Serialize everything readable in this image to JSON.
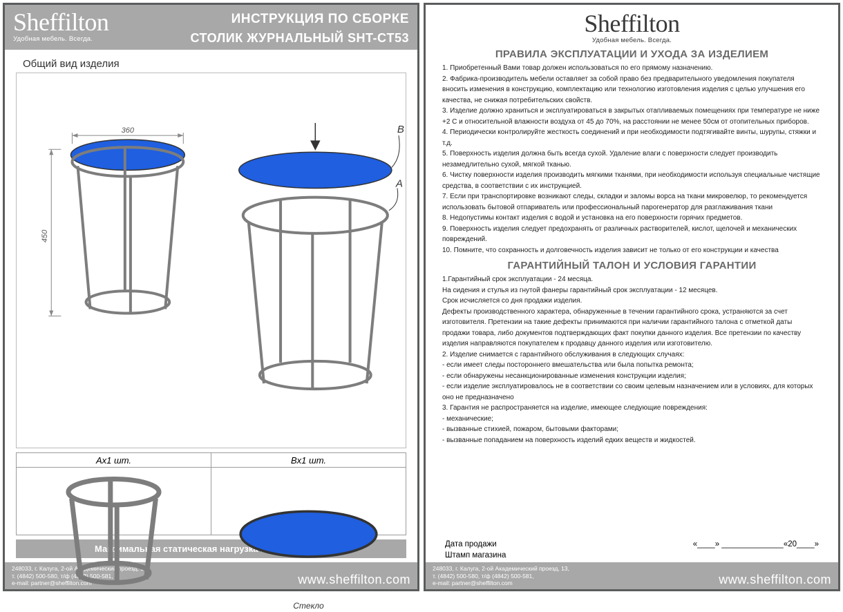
{
  "brand": {
    "name": "Sheffilton",
    "tagline": "Удобная мебель. Всегда."
  },
  "left": {
    "title1": "ИНСТРУКЦИЯ ПО СБОРКЕ",
    "title2": "СТОЛИК ЖУРНАЛЬНЫЙ SHT-CT53",
    "subheader": "Общий вид изделия",
    "diagram": {
      "width_mm": "360",
      "height_mm": "450",
      "part_a_label": "A",
      "part_b_label": "B",
      "top_color": "#1f5fe0",
      "frame_color": "#7d7d7d",
      "dim_color": "#888888"
    },
    "parts": {
      "a_head": "Aх1 шт.",
      "b_head": "Bх1 шт.",
      "b_foot": "Стекло"
    },
    "loadbar": "Максимальная статическая нагрузка на столик - 5 кг"
  },
  "right": {
    "rules_title": "ПРАВИЛА ЭКСПЛУАТАЦИИ И УХОДА ЗА ИЗДЕЛИЕМ",
    "rules": [
      "1. Приобретенный Вами товар должен использоваться по его прямому назначению.",
      "2. Фабрика-производитель мебели оставляет за собой право без предварительного уведомления покупателя вносить изменения в конструкцию, комплектацию или технологию изготовления изделия с целью улучшения его качества, не снижая потребительских свойств.",
      "3. Изделие должно храниться и эксплуатироваться в закрытых отапливаемых помещениях при температуре не ниже +2 С и относительной влажности воздуха от 45 до 70%, на расстоянии не менее 50см от отопительных приборов.",
      "4. Периодически контролируйте жесткость соединений и при необходимости подтягивайте винты, шурупы, стяжки и т.д.",
      "5. Поверхность изделия должна быть всегда сухой. Удаление влаги с поверхности следует производить незамедлительно сухой, мягкой тканью.",
      "6. Чистку поверхности изделия производить мягкими тканями, при необходимости используя специальные чистящие средства, в соответствии с их инструкцией.",
      "7. Если при транспортировке возникают следы, складки  и заломы ворса на ткани микровелюр, то рекомендуется использовать бытовой отпариватель или профессиональный парогенератор для разглаживания ткани",
      "8. Недопустимы контакт изделия с водой и установка на его поверхности горячих предметов.",
      "9. Поверхность изделия следует  предохранять от различных растворителей, кислот, щелочей и механических повреждений.",
      "10. Помните, что сохранность и долговечность изделия зависит не только от его конструкции и качества"
    ],
    "warranty_title": "ГАРАНТИЙНЫЙ ТАЛОН И УСЛОВИЯ ГАРАНТИИ",
    "warranty": [
      "1.Гарантийный срок эксплуатации - 24 месяца.",
      "На сидения и стулья из гнутой фанеры гарантийный срок эксплуатации - 12 месяцев.",
      "Срок исчисляется со дня продажи изделия.",
      "Дефекты производственного характера, обнаруженные в течении гарантийного срока, устраняются за счет изготовителя. Претензии на такие дефекты принимаются при наличии гарантийного талона с отметкой даты продажи товара, либо документов подтверждающих факт покупки данного изделия. Все претензии по качеству изделия направляются покупателем к продавцу данного изделия или изготовителю.",
      "2. Изделие снимается с гарантийного обслуживания в следующих случаях:",
      "- если имеет следы постороннего вмешательства или была попытка ремонта;",
      "- если обнаружены несанкционированные изменения конструкции изделия;",
      "- если изделие эксплуатировалось не в соответствии со своим целевым назначением или в условиях, для которых оно не предназначено",
      "3. Гарантия не распространяется на изделие, имеющее следующие повреждения:",
      "- механические;",
      "- вызванные стихией, пожаром, бытовыми факторами;",
      "- вызванные попаданием на поверхность изделий едких веществ и жидкостей."
    ],
    "sig": {
      "date_label": "Дата продажи",
      "date_blank": "«____» ______________«20____»",
      "stamp_label": "Штамп магазина"
    }
  },
  "footer": {
    "address": "248033, г. Калуга, 2-ой Академический проезд, 13,\n т. (4842) 500-580, т/ф (4842) 500-581,\n e-mail: partner@sheffilton.com",
    "url": "www.sheffilton.com"
  }
}
